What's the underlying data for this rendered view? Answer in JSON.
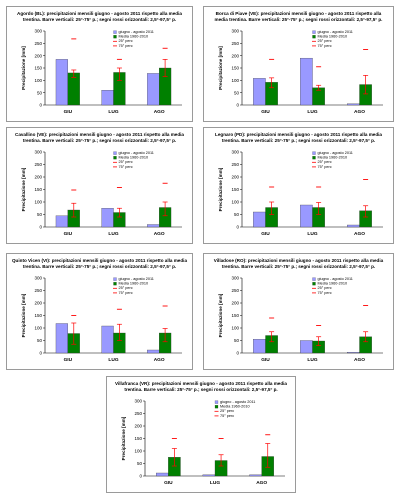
{
  "legend_labels": {
    "june": "giugno - agosto 2011",
    "media": "Media 1960-2010",
    "p25": "25° perc",
    "p75": "75° perc"
  },
  "colors": {
    "bar_2011": "#9999ff",
    "bar_media": "#008000",
    "error": "#ff0000",
    "title_note": "#000000"
  },
  "chart_data": [
    {
      "type": "bar",
      "title_line1": "Agordo (BL): precipitazioni mensili giugno - agosto 2011 rispetto alla media",
      "title_line2": "trentina. Barre verticali: 25°-75° p.; segni rossi orizzontali: 2,5°-97,5° p.",
      "ylabel": "Precipitazione [mm]",
      "ylim": [
        0,
        300
      ],
      "yticks": [
        "0",
        "50",
        "100",
        "150",
        "200",
        "250",
        "300"
      ],
      "categories": [
        "GIU",
        "LUG",
        "AGO"
      ],
      "series": [
        {
          "name": "giugno - agosto 2011",
          "values": [
            185,
            60,
            128
          ]
        },
        {
          "name": "Media 1960-2010",
          "values": [
            130,
            132,
            150
          ]
        }
      ],
      "p25": [
        112,
        100,
        115
      ],
      "p75": [
        142,
        150,
        185
      ],
      "p2_5": [
        80,
        65,
        70
      ],
      "p97_5": [
        268,
        185,
        230
      ]
    },
    {
      "type": "bar",
      "title_line1": "Borca di Piave (VE): precipitazioni mensili giugno - agosto 2011 rispetto alla",
      "title_line2": "media trentina. Barre verticali: 25°-75° p.; segni rossi orizzontali: 2,5°-97,5° p.",
      "ylabel": "Precipitazione [mm]",
      "ylim": [
        0,
        300
      ],
      "yticks": [
        "0",
        "50",
        "100",
        "150",
        "200",
        "250",
        "300"
      ],
      "categories": [
        "GIU",
        "LUG",
        "AGO"
      ],
      "series": [
        {
          "name": "giugno - agosto 2011",
          "values": [
            108,
            190,
            5
          ]
        },
        {
          "name": "Media 1960-2010",
          "values": [
            92,
            70,
            83
          ]
        }
      ],
      "p25": [
        70,
        60,
        45
      ],
      "p75": [
        110,
        80,
        120
      ],
      "p2_5": [
        40,
        30,
        20
      ],
      "p97_5": [
        185,
        155,
        225
      ]
    },
    {
      "type": "bar",
      "title_line1": "Cavallino (VE): precipitazioni mensili giugno - agosto 2011 rispetto alla media",
      "title_line2": "trentina. Barre verticali: 25°-75° p.; segni rossi orizzontali: 2,5°-97,5° p.",
      "ylabel": "Precipitazione [mm]",
      "ylim": [
        0,
        300
      ],
      "yticks": [
        "0",
        "50",
        "100",
        "150",
        "200",
        "250",
        "300"
      ],
      "categories": [
        "GIU",
        "LUG",
        "AGO"
      ],
      "series": [
        {
          "name": "giugno - agosto 2011",
          "values": [
            45,
            75,
            10
          ]
        },
        {
          "name": "Media 1960-2010",
          "values": [
            68,
            58,
            78
          ]
        }
      ],
      "p25": [
        40,
        40,
        45
      ],
      "p75": [
        95,
        75,
        100
      ],
      "p2_5": [
        20,
        10,
        15
      ],
      "p97_5": [
        148,
        158,
        175
      ]
    },
    {
      "type": "bar",
      "title_line1": "Legnaro (PD): precipitazioni mensili giugno - agosto 2011 rispetto alla media",
      "title_line2": "trentina. Barre verticali: 25°-75° p.; segni rossi orizzontali: 2,5°-97,5° p.",
      "ylabel": "Precipitazione [mm]",
      "ylim": [
        0,
        300
      ],
      "yticks": [
        "0",
        "50",
        "100",
        "150",
        "200",
        "250",
        "300"
      ],
      "categories": [
        "GIU",
        "LUG",
        "AGO"
      ],
      "series": [
        {
          "name": "giugno - agosto 2011",
          "values": [
            60,
            88,
            8
          ]
        },
        {
          "name": "Media 1960-2010",
          "values": [
            78,
            78,
            65
          ]
        }
      ],
      "p25": [
        50,
        50,
        40
      ],
      "p75": [
        100,
        98,
        85
      ],
      "p2_5": [
        25,
        30,
        10
      ],
      "p97_5": [
        160,
        160,
        190
      ]
    },
    {
      "type": "bar",
      "title_line1": "Quinto Vicen (VI): precipitazioni mensili giugno - agosto 2011 rispetto alla media",
      "title_line2": "trentina. Barre verticali: 25°-75° p.; segni rossi orizzontali: 2,5°-97,5° p.",
      "ylabel": "Precipitazione [mm]",
      "ylim": [
        0,
        300
      ],
      "yticks": [
        "0",
        "50",
        "100",
        "150",
        "200",
        "250",
        "300"
      ],
      "categories": [
        "GIU",
        "LUG",
        "AGO"
      ],
      "series": [
        {
          "name": "giugno - agosto 2011",
          "values": [
            118,
            108,
            12
          ]
        },
        {
          "name": "Media 1960-2010",
          "values": [
            78,
            80,
            80
          ]
        }
      ],
      "p25": [
        35,
        50,
        45
      ],
      "p75": [
        120,
        115,
        98
      ],
      "p2_5": [
        20,
        20,
        20
      ],
      "p97_5": [
        150,
        175,
        188
      ]
    },
    {
      "type": "bar",
      "title_line1": "Villadose (RO): precipitazioni mensili giugno - agosto 2011 rispetto alla media",
      "title_line2": "trentina. Barre verticali: 25°-75° p.; segni rossi orizzontali: 2,5°-97,5° p.",
      "ylabel": "Precipitazione [mm]",
      "ylim": [
        0,
        300
      ],
      "yticks": [
        "0",
        "50",
        "100",
        "150",
        "200",
        "250",
        "300"
      ],
      "categories": [
        "GIU",
        "LUG",
        "AGO"
      ],
      "series": [
        {
          "name": "giugno - agosto 2011",
          "values": [
            55,
            50,
            3
          ]
        },
        {
          "name": "Media 1960-2010",
          "values": [
            70,
            48,
            65
          ]
        }
      ],
      "p25": [
        45,
        30,
        45
      ],
      "p75": [
        85,
        65,
        85
      ],
      "p2_5": [
        15,
        10,
        10
      ],
      "p97_5": [
        140,
        110,
        190
      ]
    },
    {
      "type": "bar",
      "title_line1": "Villafranca (VR): precipitazioni mensili giugno - agosto 2011 rispetto alla media",
      "title_line2": "trentina. Barre verticali: 25°-75° p.; segni rossi orizzontali: 2,5°-97,5° p.",
      "ylabel": "Precipitazione [mm]",
      "ylim": [
        0,
        300
      ],
      "yticks": [
        "0",
        "50",
        "100",
        "150",
        "200",
        "250",
        "300"
      ],
      "categories": [
        "GIU",
        "LUG",
        "AGO"
      ],
      "series": [
        {
          "name": "giugno - agosto 2011",
          "values": [
            12,
            5,
            5
          ]
        },
        {
          "name": "Media 1960-2010",
          "values": [
            75,
            62,
            78
          ]
        }
      ],
      "p25": [
        40,
        40,
        35
      ],
      "p75": [
        110,
        85,
        130
      ],
      "p2_5": [
        20,
        10,
        10
      ],
      "p97_5": [
        150,
        150,
        165
      ]
    }
  ]
}
